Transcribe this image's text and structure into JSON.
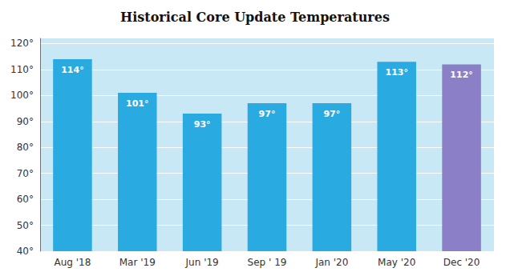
{
  "chart_data": {
    "type": "bar",
    "title": "Historical Core Update Temperatures",
    "categories": [
      "Aug '18",
      "Mar '19",
      "Jun '19",
      "Sep ' 19",
      "Jan '20",
      "May '20",
      "Dec '20"
    ],
    "values": [
      114,
      101,
      93,
      97,
      97,
      113,
      112
    ],
    "value_labels": [
      "114°",
      "101°",
      "93°",
      "97°",
      "97°",
      "113°",
      "112°"
    ],
    "data_labels": true,
    "colors": [
      "#29ABE2",
      "#29ABE2",
      "#29ABE2",
      "#29ABE2",
      "#29ABE2",
      "#29ABE2",
      "#8B80C8"
    ],
    "ylim": [
      40,
      122
    ],
    "yticks": [
      {
        "value": 40,
        "label": "40°"
      },
      {
        "value": 50,
        "label": "50°"
      },
      {
        "value": 60,
        "label": "60°"
      },
      {
        "value": 70,
        "label": "70°"
      },
      {
        "value": 80,
        "label": "80°"
      },
      {
        "value": 90,
        "label": "90°"
      },
      {
        "value": 100,
        "label": "100°"
      },
      {
        "value": 110,
        "label": "110°"
      },
      {
        "value": 120,
        "label": "120°"
      }
    ],
    "grid": true
  }
}
